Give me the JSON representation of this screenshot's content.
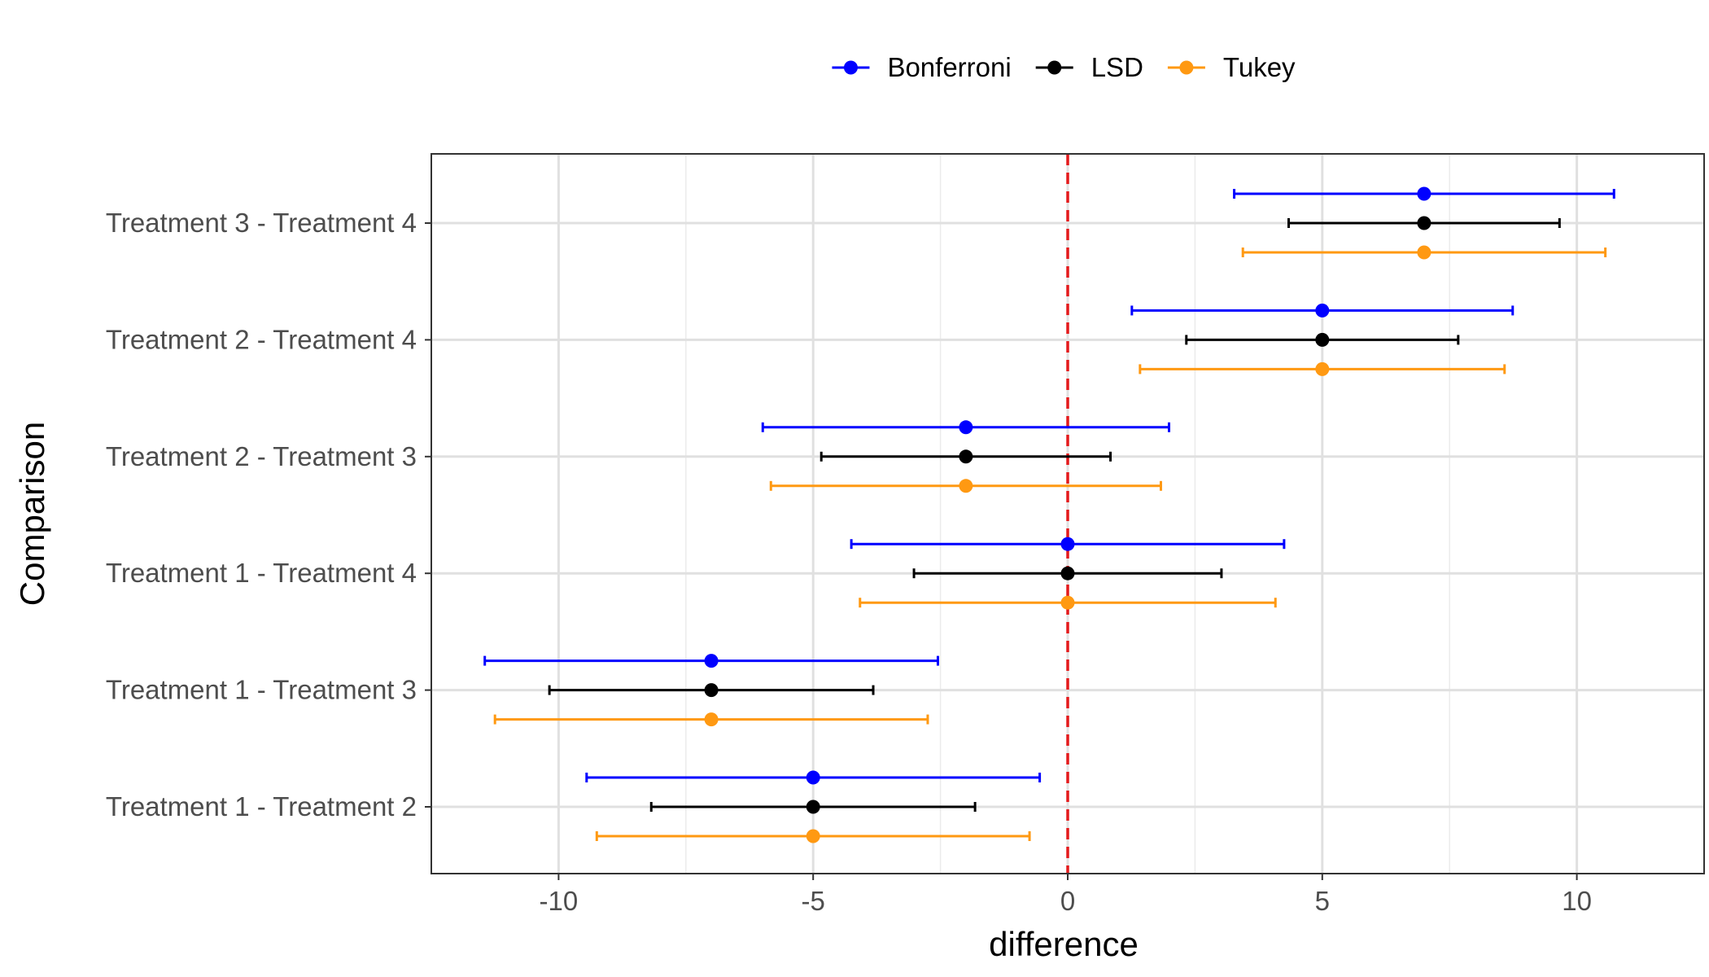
{
  "chart_data": {
    "type": "errorbar",
    "orientation": "horizontal",
    "xlabel": "difference",
    "ylabel": "Comparison",
    "xlim": [
      -12.5,
      12.5
    ],
    "x_ticks": [
      -10,
      -5,
      0,
      5,
      10
    ],
    "x_tick_labels": [
      "-10",
      "-5",
      "0",
      "5",
      "10"
    ],
    "grid": true,
    "legend_position": "top",
    "reference_line": {
      "x": 0,
      "color": "#e41a1c",
      "style": "dashed"
    },
    "categories": [
      "Treatment 1 - Treatment 2",
      "Treatment 1 - Treatment 3",
      "Treatment 1 - Treatment 4",
      "Treatment 2 - Treatment 3",
      "Treatment 2 - Treatment 4",
      "Treatment 3 - Treatment 4"
    ],
    "series": [
      {
        "name": "Bonferroni",
        "color": "#0000ff",
        "estimate": [
          -5,
          -7,
          0,
          -2,
          5,
          7
        ],
        "lower": [
          -9.45,
          -11.45,
          -4.25,
          -5.99,
          1.26,
          3.27
        ],
        "upper": [
          -0.55,
          -2.55,
          4.25,
          1.99,
          8.74,
          10.73
        ]
      },
      {
        "name": "LSD",
        "color": "#000000",
        "estimate": [
          -5,
          -7,
          0,
          -2,
          5,
          7
        ],
        "lower": [
          -8.18,
          -10.18,
          -3.02,
          -4.84,
          2.33,
          4.34
        ],
        "upper": [
          -1.82,
          -3.82,
          3.02,
          0.84,
          7.67,
          9.66
        ]
      },
      {
        "name": "Tukey",
        "color": "#ff9912",
        "estimate": [
          -5,
          -7,
          0,
          -2,
          5,
          7
        ],
        "lower": [
          -9.25,
          -11.25,
          -4.08,
          -5.83,
          1.42,
          3.44
        ],
        "upper": [
          -0.75,
          -2.75,
          4.08,
          1.83,
          8.58,
          10.56
        ]
      }
    ]
  }
}
